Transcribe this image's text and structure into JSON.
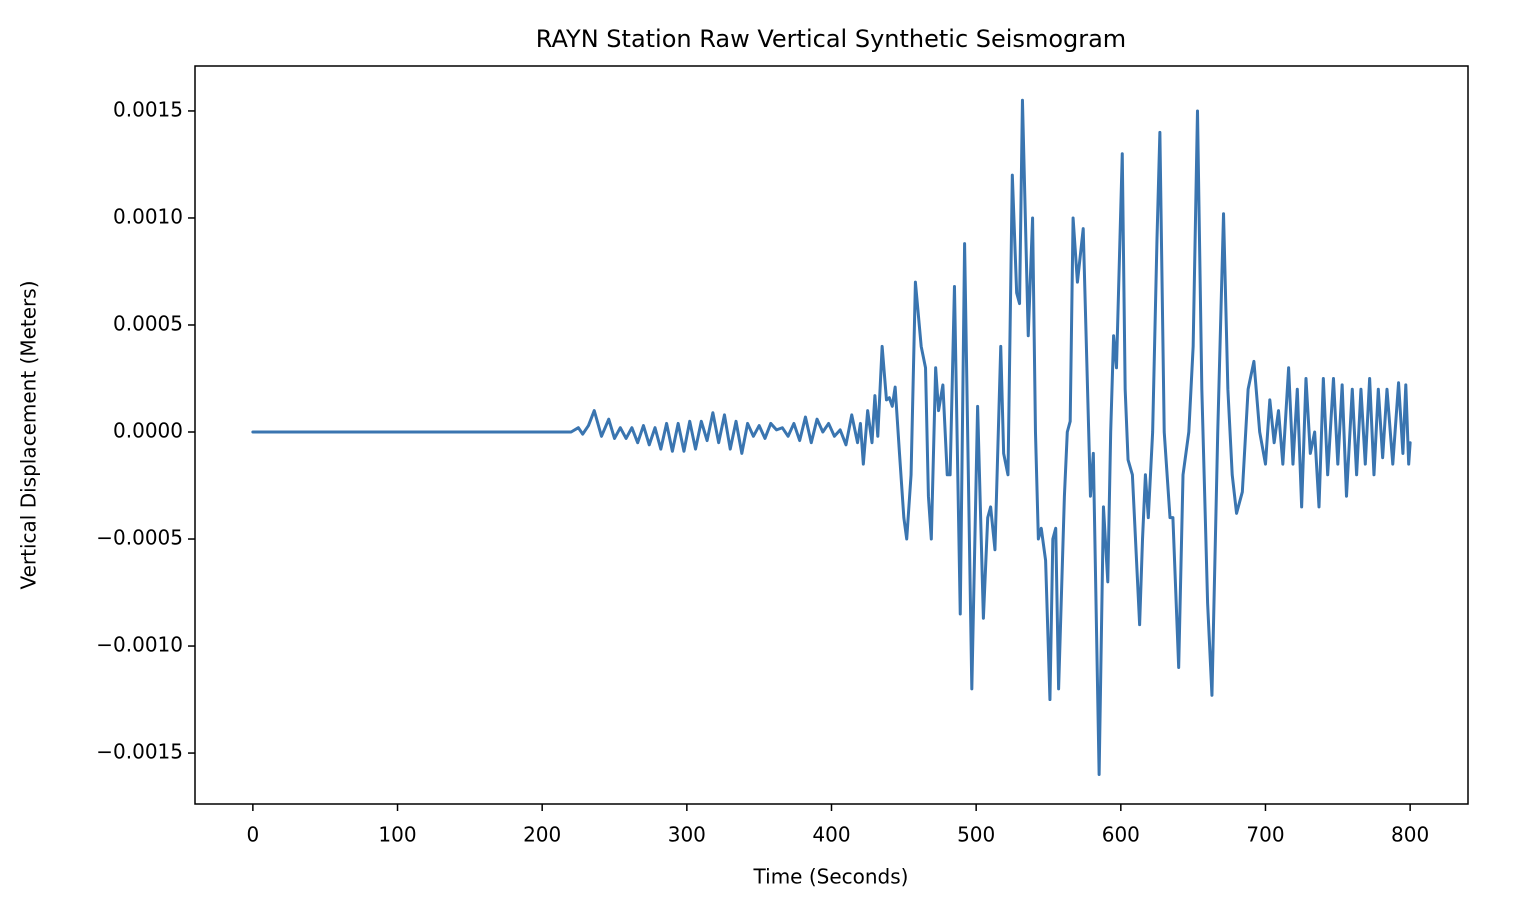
{
  "chart_data": {
    "type": "line",
    "title": "RAYN Station Raw Vertical Synthetic Seismogram",
    "xlabel": "Time (Seconds)",
    "ylabel": "Vertical Displacement (Meters)",
    "color": "#3a75b0",
    "x": [
      0,
      215,
      220,
      225,
      228,
      232,
      236,
      241,
      246,
      250,
      254,
      258,
      262,
      266,
      270,
      274,
      278,
      282,
      286,
      290,
      294,
      298,
      302,
      306,
      310,
      314,
      318,
      322,
      326,
      330,
      334,
      338,
      342,
      346,
      350,
      354,
      358,
      362,
      366,
      370,
      374,
      378,
      382,
      386,
      390,
      394,
      398,
      402,
      406,
      410,
      414,
      418,
      420,
      422,
      425,
      428,
      430,
      432,
      435,
      438,
      440,
      442,
      444,
      447,
      450,
      452,
      455,
      458,
      462,
      465,
      467,
      469,
      472,
      474,
      477,
      480,
      482,
      485,
      489,
      492,
      497,
      501,
      505,
      508,
      510,
      513,
      517,
      519,
      522,
      525,
      528,
      530,
      532,
      536,
      539,
      541,
      543,
      545,
      548,
      551,
      553,
      555,
      557,
      561,
      563,
      565,
      567,
      570,
      574,
      577,
      579,
      581,
      585,
      588,
      591,
      593,
      595,
      597,
      601,
      603,
      605,
      608,
      613,
      615,
      617,
      619,
      622,
      625,
      627,
      630,
      634,
      636,
      640,
      643,
      647,
      650,
      653,
      656,
      660,
      663,
      667,
      671,
      674,
      677,
      680,
      684,
      688,
      692,
      696,
      700,
      703,
      706,
      709,
      712,
      716,
      719,
      722,
      725,
      728,
      731,
      734,
      737,
      740,
      743,
      747,
      750,
      753,
      756,
      760,
      763,
      766,
      769,
      772,
      775,
      778,
      781,
      784,
      788,
      792,
      795,
      797,
      799,
      800
    ],
    "values": [
      0,
      0,
      0,
      2e-05,
      -1e-05,
      3e-05,
      0.0001,
      -2e-05,
      6e-05,
      -3e-05,
      2e-05,
      -3e-05,
      2e-05,
      -5e-05,
      3e-05,
      -6e-05,
      2e-05,
      -8e-05,
      4e-05,
      -9e-05,
      4e-05,
      -9e-05,
      5e-05,
      -8e-05,
      5e-05,
      -4e-05,
      9e-05,
      -5e-05,
      8e-05,
      -8e-05,
      5e-05,
      -0.0001,
      4e-05,
      -2e-05,
      3e-05,
      -3e-05,
      4e-05,
      1e-05,
      2e-05,
      -2e-05,
      4e-05,
      -4e-05,
      7e-05,
      -5e-05,
      6e-05,
      0,
      4e-05,
      -2e-05,
      1e-05,
      -6e-05,
      8e-05,
      -5e-05,
      4e-05,
      -0.00015,
      0.0001,
      -5e-05,
      0.00017,
      -2e-05,
      0.0004,
      0.00015,
      0.00016,
      0.00012,
      0.00021,
      -0.0001,
      -0.0004,
      -0.0005,
      -0.0002,
      0.0007,
      0.0004,
      0.0003,
      -0.0003,
      -0.0005,
      0.0003,
      0.0001,
      0.00022,
      -0.0002,
      -0.0002,
      0.00068,
      -0.00085,
      0.00088,
      -0.0012,
      0.00012,
      -0.00087,
      -0.0004,
      -0.00035,
      -0.00055,
      0.0004,
      -0.0001,
      -0.0002,
      0.0012,
      0.00065,
      0.0006,
      0.00155,
      0.00045,
      0.001,
      0,
      -0.0005,
      -0.00045,
      -0.0006,
      -0.00125,
      -0.0005,
      -0.00045,
      -0.0012,
      -0.0003,
      0,
      5e-05,
      0.001,
      0.0007,
      0.00095,
      0.0002,
      -0.0003,
      -0.0001,
      -0.0016,
      -0.00035,
      -0.0007,
      0,
      0.00045,
      0.0003,
      0.0013,
      0.0002,
      -0.00013,
      -0.0002,
      -0.0009,
      -0.0005,
      -0.0002,
      -0.0004,
      0,
      0.0009,
      0.0014,
      0,
      -0.0004,
      -0.0004,
      -0.0011,
      -0.0002,
      0,
      0.0004,
      0.0015,
      0.0002,
      -0.0008,
      -0.00123,
      0,
      0.00102,
      0.0002,
      -0.0002,
      -0.00038,
      -0.00028,
      0.0002,
      0.00033,
      0,
      -0.00015,
      0.00015,
      -5e-05,
      0.0001,
      -0.00015,
      0.0003,
      -0.00015,
      0.0002,
      -0.00035,
      0.00025,
      -0.0001,
      0,
      -0.00035,
      0.00025,
      -0.0002,
      0.00025,
      -0.00015,
      0.00022,
      -0.0003,
      0.0002,
      -0.0002,
      0.0002,
      -0.00015,
      0.00025,
      -0.0002,
      0.0002,
      -0.00012,
      0.0002,
      -0.00015,
      0.00023,
      -0.0001,
      0.00022,
      -0.00015,
      -5e-05
    ],
    "xlim": [
      -40,
      840
    ],
    "ylim": [
      -0.001738,
      0.00171
    ],
    "xticks": [
      0,
      100,
      200,
      300,
      400,
      500,
      600,
      700,
      800
    ],
    "yticks": [
      {
        "value": -0.0015,
        "label": "−0.0015"
      },
      {
        "value": -0.001,
        "label": "−0.0010"
      },
      {
        "value": -0.0005,
        "label": "−0.0005"
      },
      {
        "value": 0,
        "label": "0.0000"
      },
      {
        "value": 0.0005,
        "label": "0.0005"
      },
      {
        "value": 0.001,
        "label": "0.0010"
      },
      {
        "value": 0.0015,
        "label": "0.0015"
      }
    ]
  }
}
